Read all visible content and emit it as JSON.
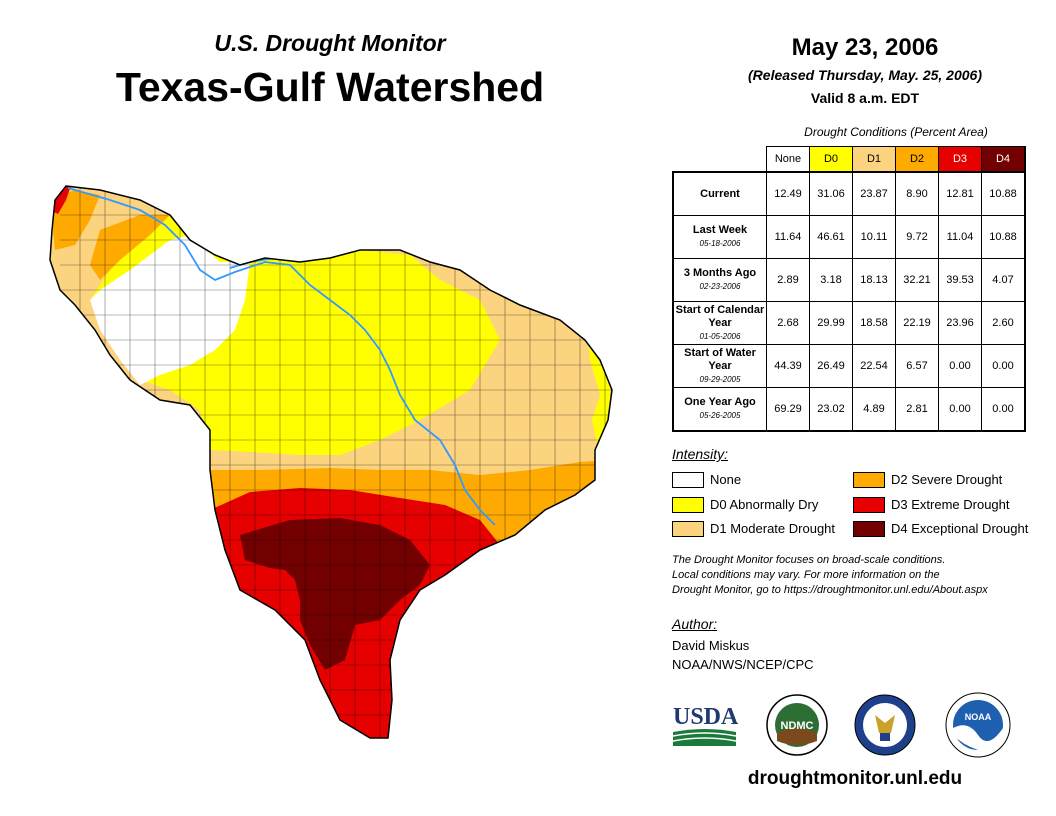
{
  "header": {
    "subtitle": "U.S. Drought Monitor",
    "title": "Texas-Gulf Watershed",
    "date": "May 23, 2006",
    "released": "(Released Thursday, May. 25, 2006)",
    "valid": "Valid 8 a.m. EDT"
  },
  "table": {
    "caption": "Drought Conditions (Percent Area)",
    "columns": [
      "None",
      "D0",
      "D1",
      "D2",
      "D3",
      "D4"
    ],
    "rows": [
      {
        "label": "Current",
        "date": "",
        "values": [
          "12.49",
          "31.06",
          "23.87",
          "8.90",
          "12.81",
          "10.88"
        ]
      },
      {
        "label": "Last Week",
        "date": "05-18-2006",
        "values": [
          "11.64",
          "46.61",
          "10.11",
          "9.72",
          "11.04",
          "10.88"
        ]
      },
      {
        "label": "3 Months Ago",
        "date": "02-23-2006",
        "values": [
          "2.89",
          "3.18",
          "18.13",
          "32.21",
          "39.53",
          "4.07"
        ]
      },
      {
        "label": "Start of Calendar Year",
        "date": "01-05-2006",
        "values": [
          "2.68",
          "29.99",
          "18.58",
          "22.19",
          "23.96",
          "2.60"
        ]
      },
      {
        "label": "Start of Water Year",
        "date": "09-29-2005",
        "values": [
          "44.39",
          "26.49",
          "22.54",
          "6.57",
          "0.00",
          "0.00"
        ]
      },
      {
        "label": "One Year Ago",
        "date": "05-26-2005",
        "values": [
          "69.29",
          "23.02",
          "4.89",
          "2.81",
          "0.00",
          "0.00"
        ]
      }
    ]
  },
  "legend": {
    "title": "Intensity:",
    "items": [
      {
        "label": "None",
        "color": "#ffffff"
      },
      {
        "label": "D0 Abnormally Dry",
        "color": "#ffff00"
      },
      {
        "label": "D1 Moderate Drought",
        "color": "#fcd37f"
      },
      {
        "label": "D2 Severe Drought",
        "color": "#ffaa00"
      },
      {
        "label": "D3 Extreme Drought",
        "color": "#e60000"
      },
      {
        "label": "D4 Exceptional Drought",
        "color": "#730000"
      }
    ]
  },
  "note": {
    "line1": "The Drought Monitor focuses on broad-scale conditions.",
    "line2": "Local conditions may vary. For more information on the",
    "line3": "Drought Monitor, go to https://droughtmonitor.unl.edu/About.aspx"
  },
  "author": {
    "title": "Author:",
    "name": "David Miskus",
    "org": "NOAA/NWS/NCEP/CPC"
  },
  "logos": {
    "usda": "USDA",
    "ndmc": "NDMC",
    "noaa": "NOAA"
  },
  "footer": {
    "url": "droughtmonitor.unl.edu"
  },
  "colors": {
    "none": "#ffffff",
    "d0": "#ffff00",
    "d1": "#fcd37f",
    "d2": "#ffaa00",
    "d3": "#e60000",
    "d4": "#730000",
    "river": "#3399ff"
  }
}
